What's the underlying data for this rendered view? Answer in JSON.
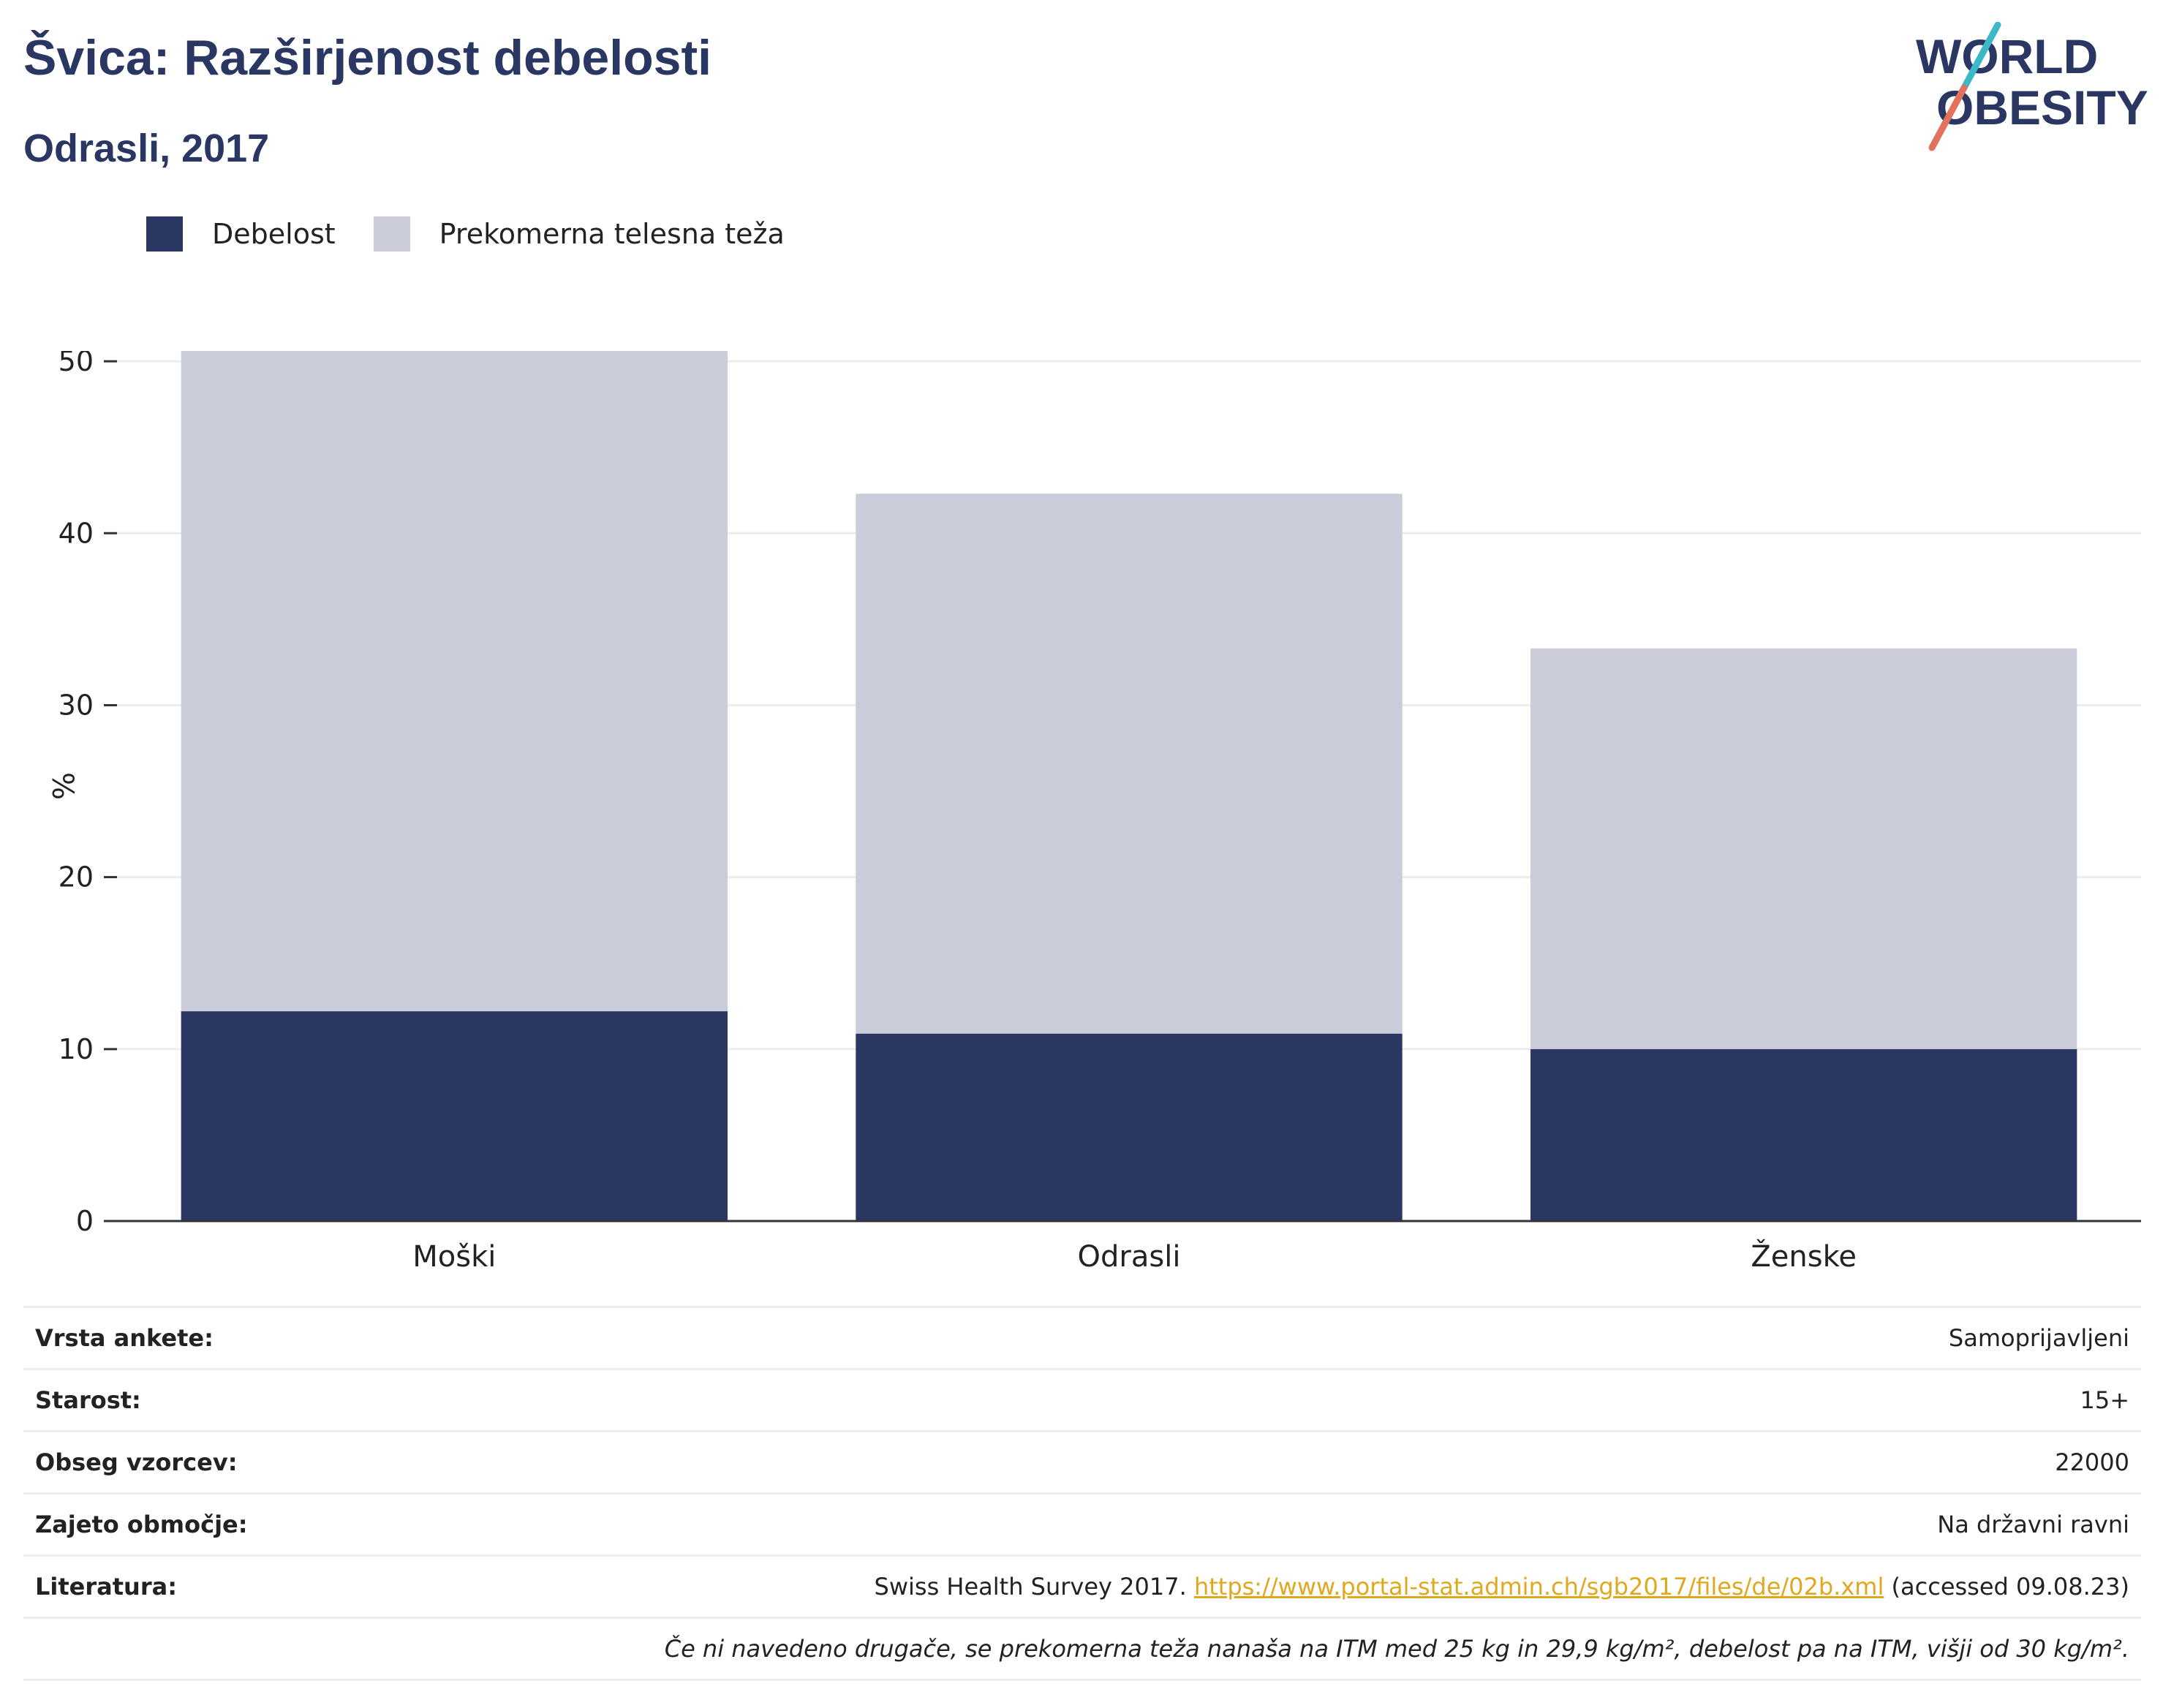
{
  "header": {
    "title": "Švica: Razširjenost debelosti",
    "subtitle": "Odrasli, 2017"
  },
  "logo": {
    "line1": "WORLD",
    "line2": "OBESITY",
    "colors": {
      "text": "#2b3763",
      "slash_top": "#3cb8c6",
      "slash_bottom": "#e2725b"
    }
  },
  "legend": [
    {
      "label": "Debelost",
      "color": "#2b3763"
    },
    {
      "label": "Prekomerna telesna teža",
      "color": "#cacdd9"
    }
  ],
  "chart_data": {
    "type": "bar",
    "stacked": true,
    "categories": [
      "Moški",
      "Odrasli",
      "Ženske"
    ],
    "series": [
      {
        "name": "Debelost",
        "color": "#2b3763",
        "values": [
          12.2,
          10.9,
          10.0
        ]
      },
      {
        "name": "Prekomerna telesna teža",
        "color": "#cacdd9",
        "values": [
          38.4,
          31.4,
          23.3
        ]
      }
    ],
    "ylabel": "%",
    "ylim": [
      0,
      50.6
    ],
    "yticks": [
      0,
      10,
      20,
      30,
      40,
      50
    ],
    "grid": true,
    "legend_position": "top-left"
  },
  "info": {
    "rows": [
      {
        "key": "Vrsta ankete:",
        "value": "Samoprijavljeni"
      },
      {
        "key": "Starost:",
        "value": "15+"
      },
      {
        "key": "Obseg vzorcev:",
        "value": "22000"
      },
      {
        "key": "Zajeto območje:",
        "value": "Na državni ravni"
      }
    ],
    "reference": {
      "key": "Literatura:",
      "text": "Swiss Health Survey 2017.",
      "link": "https://www.portal-stat.admin.ch/sgb2017/files/de/02b.xml",
      "accessed": "(accessed 09.08.23)"
    },
    "note": "Če ni navedeno drugače, se prekomerna teža nanaša na ITM med 25 kg in 29,9 kg/m², debelost pa na ITM, višji od 30 kg/m²."
  }
}
